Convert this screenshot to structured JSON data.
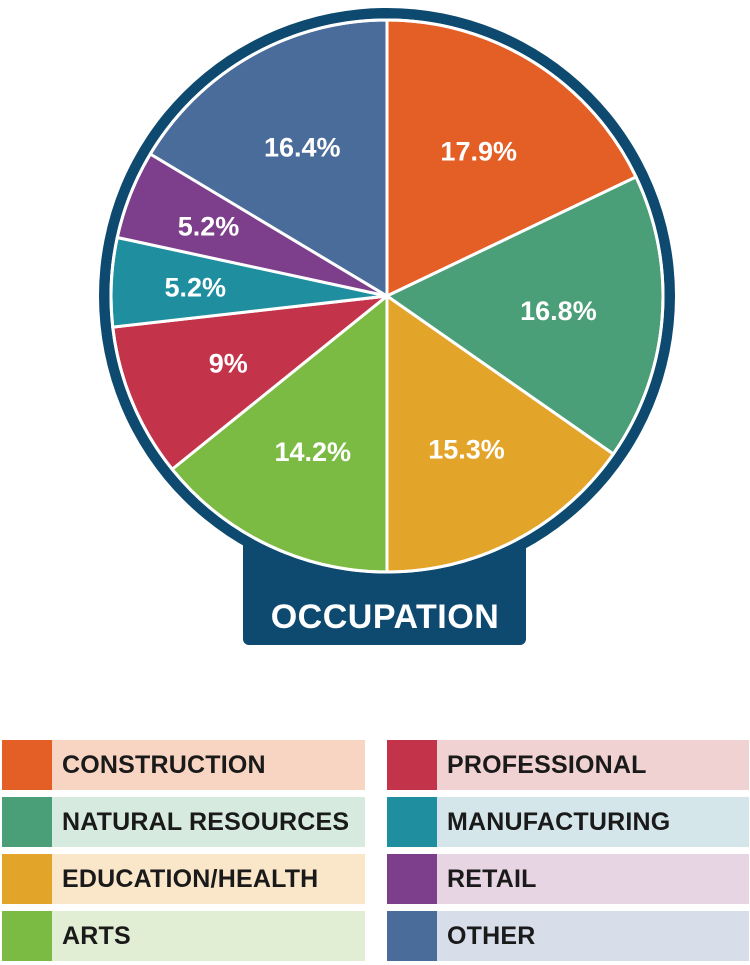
{
  "chart_data": {
    "type": "pie",
    "title": "OCCUPATION",
    "start_angle_deg": 0,
    "direction": "clockwise",
    "slices": [
      {
        "name": "CONSTRUCTION",
        "value": 17.9,
        "label": "17.9%",
        "color": "#e45f26",
        "legend_bg": "#f8d5c2"
      },
      {
        "name": "NATURAL RESOURCES",
        "value": 16.8,
        "label": "16.8%",
        "color": "#4a9e78",
        "legend_bg": "#d6eadf"
      },
      {
        "name": "EDUCATION/HEALTH",
        "value": 15.3,
        "label": "15.3%",
        "color": "#e3a42a",
        "legend_bg": "#fae7c9"
      },
      {
        "name": "ARTS",
        "value": 14.2,
        "label": "14.2%",
        "color": "#7cbb43",
        "legend_bg": "#e2eed4"
      },
      {
        "name": "PROFESSIONAL",
        "value": 9.0,
        "label": "9%",
        "color": "#c3344b",
        "legend_bg": "#f1d2d2"
      },
      {
        "name": "MANUFACTURING",
        "value": 5.2,
        "label": "5.2%",
        "color": "#1f8fa0",
        "legend_bg": "#d5e6ea"
      },
      {
        "name": "RETAIL",
        "value": 5.2,
        "label": "5.2%",
        "color": "#7d3f8c",
        "legend_bg": "#e8d5e3"
      },
      {
        "name": "OTHER",
        "value": 16.4,
        "label": "16.4%",
        "color": "#4a6c9a",
        "legend_bg": "#d7dde9"
      }
    ],
    "frame_color": "#0e4a6f"
  },
  "legend": {
    "left_column": [
      {
        "label": "CONSTRUCTION",
        "slice": 0
      },
      {
        "label": "NATURAL RESOURCES",
        "slice": 1
      },
      {
        "label": "EDUCATION/HEALTH",
        "slice": 2
      },
      {
        "label": "ARTS",
        "slice": 3
      }
    ],
    "right_column": [
      {
        "label": "PROFESSIONAL",
        "slice": 4
      },
      {
        "label": "MANUFACTURING",
        "slice": 5
      },
      {
        "label": "RETAIL",
        "slice": 6
      },
      {
        "label": "OTHER",
        "slice": 7
      }
    ]
  }
}
